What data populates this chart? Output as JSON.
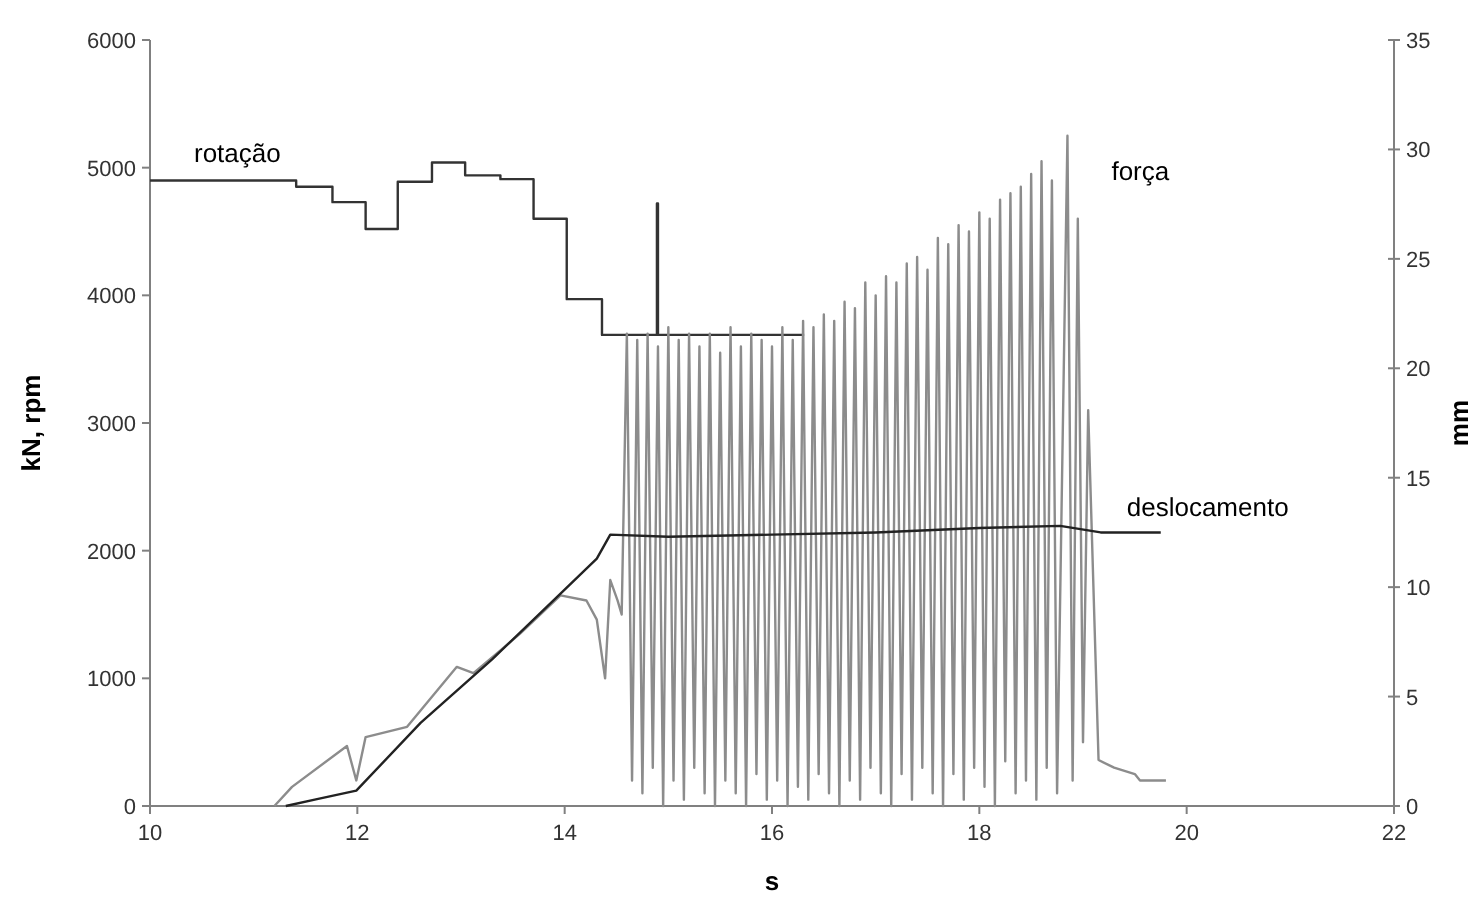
{
  "chart_data": {
    "type": "line",
    "xlabel": "s",
    "ylabel": "kN, rpm",
    "y2label": "mm",
    "xlim": [
      10,
      22
    ],
    "xticks": [
      10,
      12,
      14,
      16,
      18,
      20,
      22
    ],
    "ylim": [
      0,
      6000
    ],
    "yticks": [
      0,
      1000,
      2000,
      3000,
      4000,
      5000,
      6000
    ],
    "y2lim": [
      0,
      35
    ],
    "y2ticks": [
      0,
      5,
      10,
      15,
      20,
      25,
      30,
      35
    ],
    "series": [
      {
        "name": "rotação",
        "type": "step",
        "color": "#333333",
        "x": [
          10,
          11.41,
          11.76,
          12.08,
          12.39,
          12.72,
          13.04,
          13.38,
          13.7,
          14.02,
          14.36,
          14.89,
          14.9,
          14.92,
          16.31
        ],
        "values": [
          4900,
          4850,
          4730,
          4520,
          4890,
          5040,
          4940,
          4910,
          4600,
          3970,
          3690,
          4720,
          3690,
          3690,
          3690
        ]
      },
      {
        "name": "força",
        "type": "line",
        "color": "#8c8c8c",
        "x": [
          11.2,
          11.37,
          11.9,
          11.99,
          12.08,
          12.48,
          12.96,
          13.12,
          13.57,
          13.96,
          14.21,
          14.31,
          14.39,
          14.44,
          14.51,
          14.55,
          14.6,
          14.65,
          14.7,
          14.75,
          14.8,
          14.85,
          14.9,
          14.95,
          15,
          15.05,
          15.1,
          15.15,
          15.2,
          15.25,
          15.3,
          15.35,
          15.4,
          15.45,
          15.5,
          15.55,
          15.6,
          15.65,
          15.7,
          15.75,
          15.8,
          15.85,
          15.9,
          15.95,
          16,
          16.05,
          16.1,
          16.15,
          16.2,
          16.25,
          16.3,
          16.35,
          16.4,
          16.45,
          16.5,
          16.55,
          16.6,
          16.65,
          16.7,
          16.75,
          16.8,
          16.85,
          16.9,
          16.95,
          17,
          17.05,
          17.1,
          17.15,
          17.2,
          17.25,
          17.3,
          17.35,
          17.4,
          17.45,
          17.5,
          17.55,
          17.6,
          17.65,
          17.7,
          17.75,
          17.8,
          17.85,
          17.9,
          17.95,
          18,
          18.05,
          18.1,
          18.15,
          18.2,
          18.25,
          18.3,
          18.35,
          18.4,
          18.45,
          18.5,
          18.55,
          18.6,
          18.65,
          18.7,
          18.75,
          18.85,
          18.9,
          18.95,
          19,
          19.05,
          19.15,
          19.3,
          19.5,
          19.55,
          19.8
        ],
        "values": [
          0,
          150,
          470,
          200,
          540,
          620,
          1090,
          1040,
          1350,
          1650,
          1610,
          1460,
          1000,
          1770,
          1610,
          1500,
          3700,
          200,
          3650,
          100,
          3700,
          300,
          3600,
          0,
          3750,
          200,
          3650,
          50,
          3700,
          300,
          3600,
          100,
          3700,
          0,
          3550,
          200,
          3750,
          100,
          3600,
          0,
          3700,
          250,
          3650,
          50,
          3600,
          200,
          3750,
          0,
          3650,
          150,
          3800,
          50,
          3750,
          250,
          3850,
          100,
          3800,
          0,
          3950,
          200,
          3900,
          50,
          4100,
          300,
          4000,
          100,
          4150,
          0,
          4100,
          250,
          4250,
          50,
          4300,
          300,
          4200,
          100,
          4450,
          0,
          4400,
          250,
          4550,
          50,
          4500,
          300,
          4650,
          150,
          4600,
          0,
          4750,
          350,
          4800,
          100,
          4850,
          200,
          4950,
          50,
          5050,
          300,
          4900,
          100,
          5250,
          200,
          4600,
          500,
          3100,
          360,
          300,
          250,
          200,
          200
        ]
      },
      {
        "name": "deslocamento",
        "type": "line",
        "axis": "y2",
        "color": "#222222",
        "x": [
          11.31,
          11.6,
          11.99,
          12.61,
          13.3,
          13.96,
          14.31,
          14.44,
          15,
          16,
          17,
          18,
          18.78,
          19.17,
          19.75
        ],
        "values": [
          0,
          0.3,
          0.7,
          3.8,
          6.7,
          9.7,
          11.3,
          12.4,
          12.3,
          12.4,
          12.5,
          12.7,
          12.8,
          12.5,
          12.5
        ]
      }
    ]
  }
}
